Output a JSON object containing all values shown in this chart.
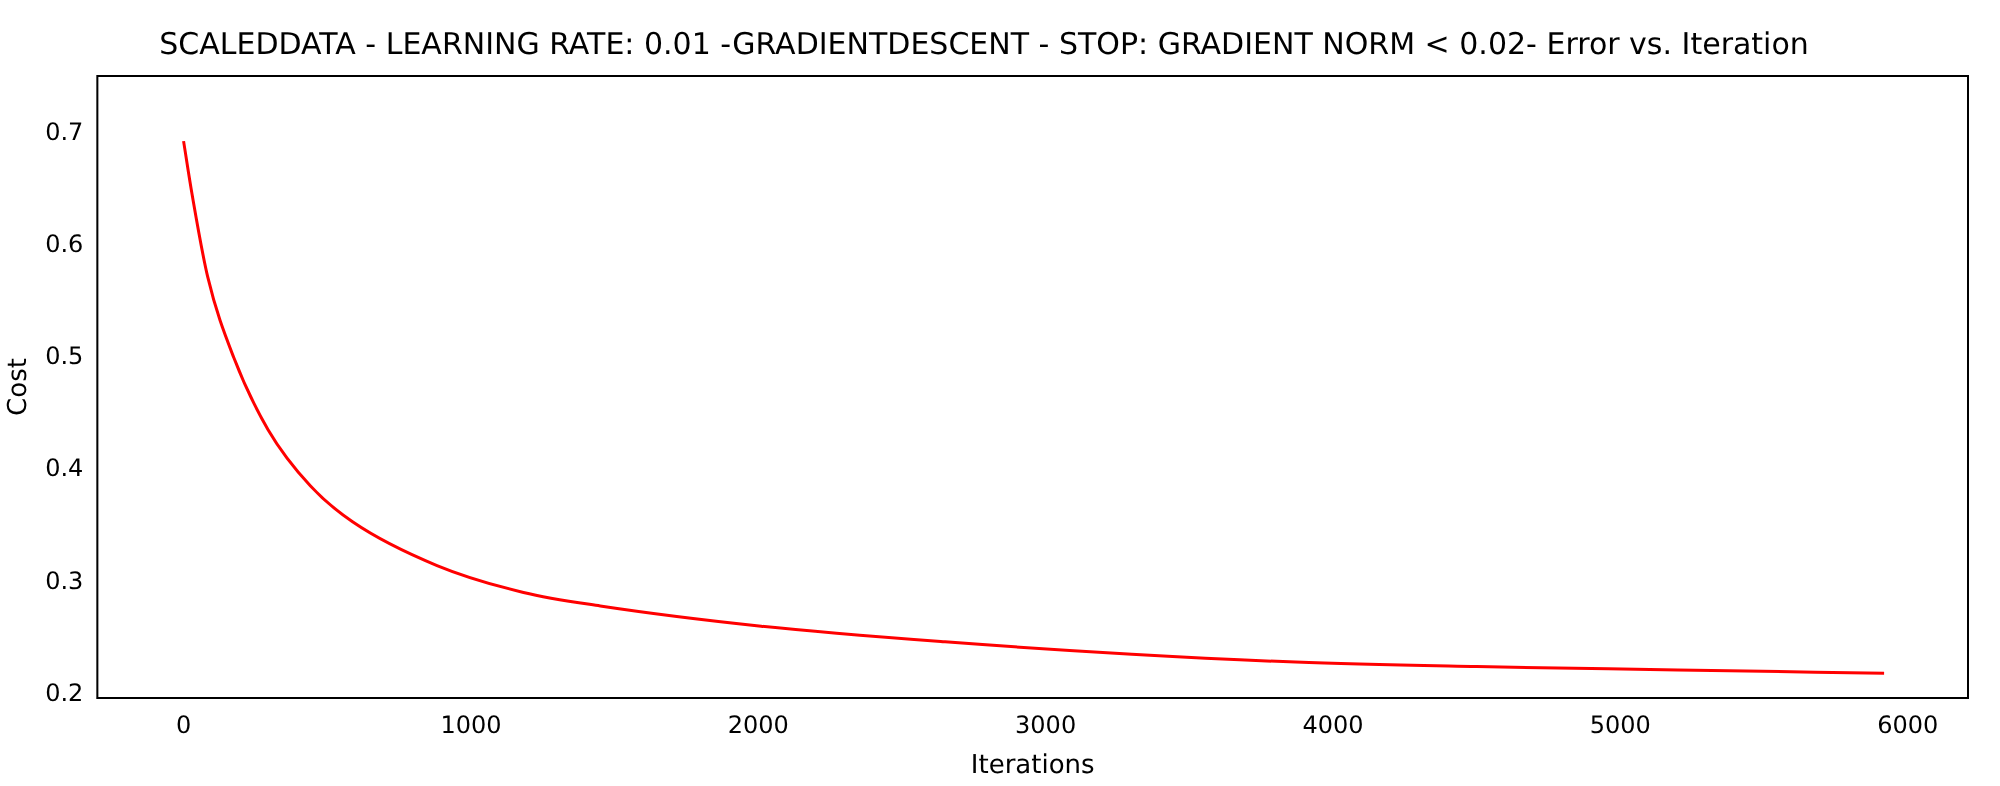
{
  "chart_data": {
    "type": "line",
    "title": "SCALEDDATA - LEARNING RATE: 0.01 -GRADIENTDESCENT - STOP: GRADIENT NORM < 0.02- Error vs. Iteration",
    "xlabel": "Iterations",
    "ylabel": "Cost",
    "x": [
      0,
      30,
      84,
      175,
      294,
      441,
      588,
      882,
      1183,
      1450,
      2010,
      2650,
      3300,
      3870,
      4500,
      5200,
      5918
    ],
    "series": [
      {
        "color": "#ff0000",
        "values": [
          0.693,
          0.645,
          0.572,
          0.5,
          0.436,
          0.386,
          0.354,
          0.315,
          0.291,
          0.279,
          0.261,
          0.247,
          0.236,
          0.229,
          0.225,
          0.222,
          0.219
        ]
      }
    ],
    "xlim": [
      -300,
      6210
    ],
    "xticks": [
      0,
      1000,
      2000,
      3000,
      4000,
      5000,
      6000
    ],
    "ylim": [
      0.197,
      0.751
    ],
    "yticks": [
      0.2,
      0.3,
      0.4,
      0.5,
      0.6,
      0.7
    ],
    "grid": false,
    "legend": false,
    "marker": "none",
    "line_style": "solid"
  }
}
